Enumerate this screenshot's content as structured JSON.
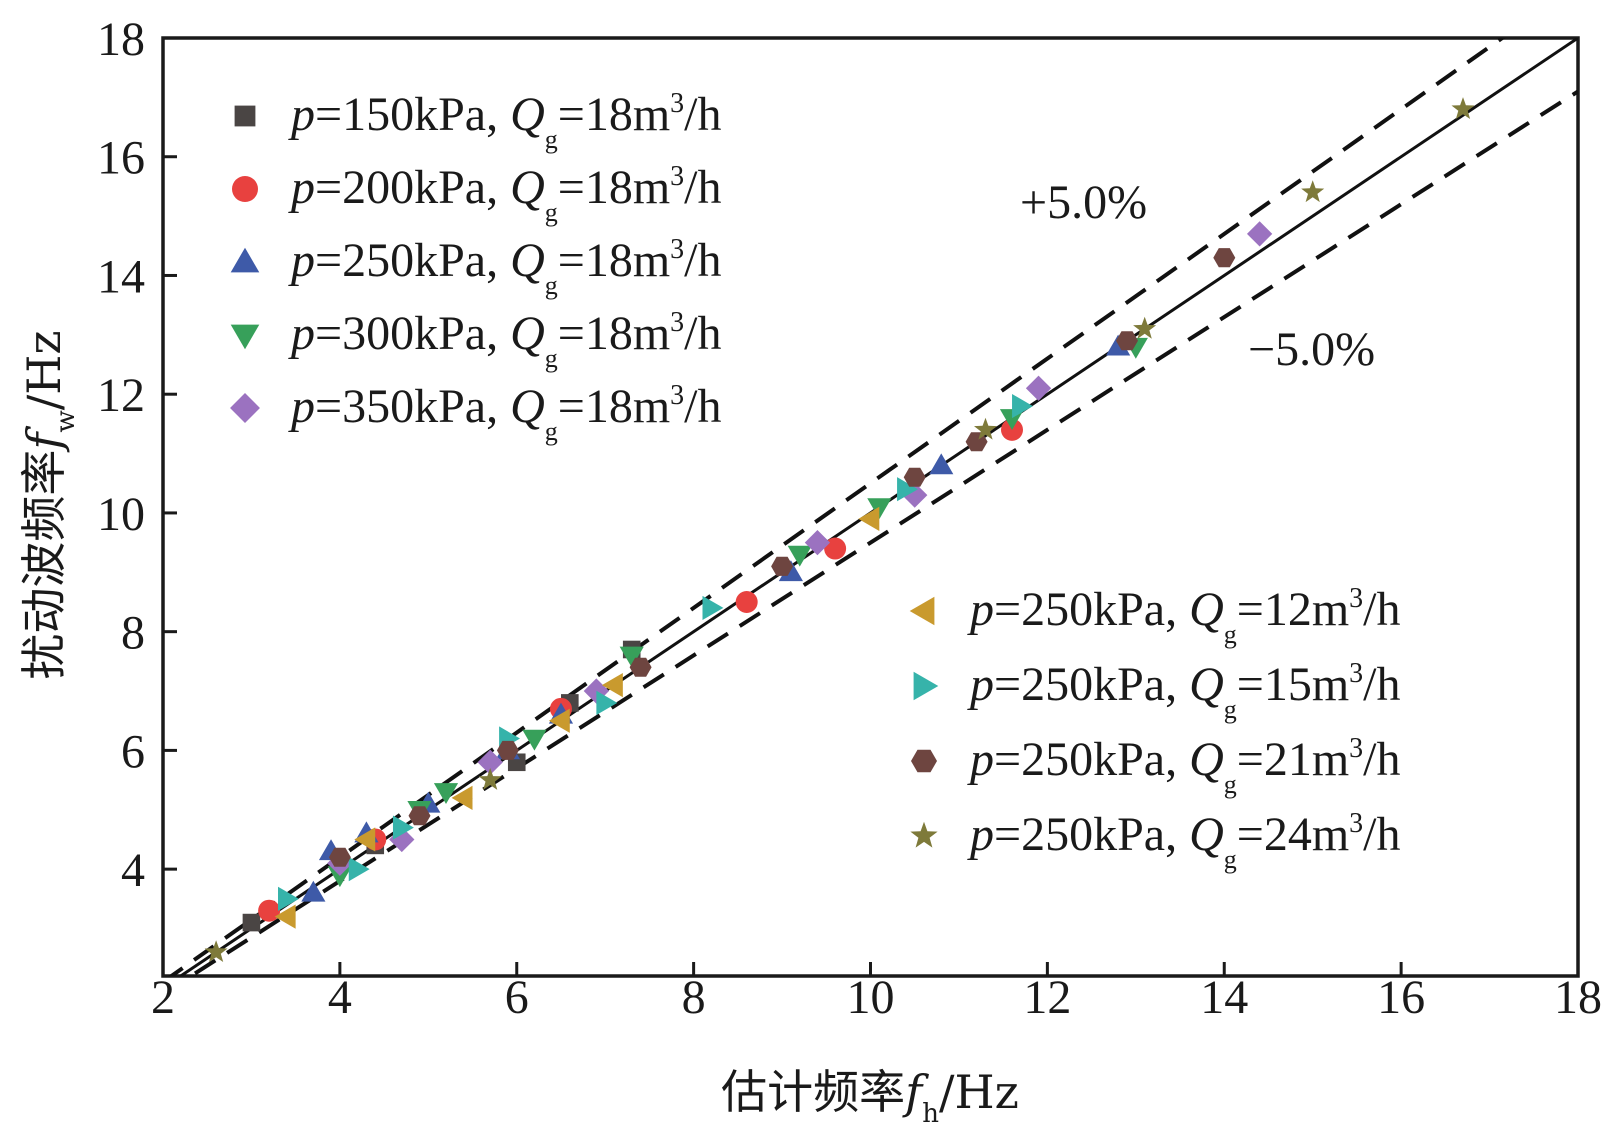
{
  "chart_data": {
    "type": "scatter",
    "xlabel": {
      "prefix": "估计频率",
      "var": "f",
      "sub": "h",
      "unit": "/Hz"
    },
    "ylabel": {
      "prefix": "扰动波频率",
      "var": "f",
      "sub": "w",
      "unit": "/Hz"
    },
    "xlim": [
      2,
      18
    ],
    "ylim": [
      2.2,
      18
    ],
    "xticks": [
      2,
      4,
      6,
      8,
      10,
      12,
      14,
      16,
      18
    ],
    "yticks": [
      4,
      6,
      8,
      10,
      12,
      14,
      16,
      18
    ],
    "tick_labels_x": [
      "2",
      "4",
      "6",
      "8",
      "10",
      "12",
      "14",
      "16",
      "18"
    ],
    "tick_labels_y": [
      "4",
      "6",
      "8",
      "10",
      "12",
      "14",
      "16",
      "18"
    ],
    "reference_lines": [
      {
        "name": "y = x",
        "slope": 1.0,
        "style": "solid"
      },
      {
        "name": "+5.0%",
        "slope": 1.05,
        "style": "dashed"
      },
      {
        "name": "-5.0%",
        "slope": 0.95,
        "style": "dashed"
      }
    ],
    "annotations": {
      "plus": "+5.0%",
      "minus": "−5.0%"
    },
    "legend_position": "top-left and lower-right",
    "series": [
      {
        "key": "s150",
        "p_var": "p",
        "p_text": "=150kPa, ",
        "q_var": "Q",
        "q_sub": "g",
        "q_text": "=18m",
        "q_sup": "3",
        "q_unit": "/h",
        "marker": "square",
        "color": "#4a4544",
        "points": [
          [
            3.0,
            3.1
          ],
          [
            4.4,
            4.4
          ],
          [
            6.0,
            5.8
          ],
          [
            6.6,
            6.8
          ],
          [
            7.3,
            7.7
          ]
        ]
      },
      {
        "key": "s200",
        "p_var": "p",
        "p_text": "=200kPa, ",
        "q_var": "Q",
        "q_sub": "g",
        "q_text": "=18m",
        "q_sup": "3",
        "q_unit": "/h",
        "marker": "circle",
        "color": "#e8413f",
        "points": [
          [
            3.2,
            3.3
          ],
          [
            4.4,
            4.5
          ],
          [
            6.5,
            6.7
          ],
          [
            8.6,
            8.5
          ],
          [
            9.6,
            9.4
          ],
          [
            11.6,
            11.4
          ]
        ]
      },
      {
        "key": "s250",
        "p_var": "p",
        "p_text": "=250kPa, ",
        "q_var": "Q",
        "q_sub": "g",
        "q_text": "=18m",
        "q_sup": "3",
        "q_unit": "/h",
        "marker": "triangle-up",
        "color": "#3e5aa8",
        "points": [
          [
            3.7,
            3.6
          ],
          [
            3.9,
            4.3
          ],
          [
            4.3,
            4.6
          ],
          [
            5.0,
            5.1
          ],
          [
            5.9,
            6.0
          ],
          [
            6.5,
            6.6
          ],
          [
            9.1,
            9.0
          ],
          [
            10.8,
            10.8
          ],
          [
            12.8,
            12.8
          ]
        ]
      },
      {
        "key": "s300",
        "p_var": "p",
        "p_text": "=300kPa, ",
        "q_var": "Q",
        "q_sub": "g",
        "q_text": "=18m",
        "q_sup": "3",
        "q_unit": "/h",
        "marker": "triangle-down",
        "color": "#37a05a",
        "points": [
          [
            4.0,
            3.9
          ],
          [
            4.9,
            5.0
          ],
          [
            5.2,
            5.3
          ],
          [
            6.2,
            6.2
          ],
          [
            7.3,
            7.6
          ],
          [
            9.2,
            9.3
          ],
          [
            10.1,
            10.1
          ],
          [
            11.6,
            11.6
          ],
          [
            13.0,
            12.8
          ]
        ]
      },
      {
        "key": "s350",
        "p_var": "p",
        "p_text": "=350kPa, ",
        "q_var": "Q",
        "q_sub": "g",
        "q_text": "=18m",
        "q_sup": "3",
        "q_unit": "/h",
        "marker": "diamond",
        "color": "#9b72c0",
        "points": [
          [
            4.0,
            4.1
          ],
          [
            4.7,
            4.5
          ],
          [
            5.7,
            5.8
          ],
          [
            6.9,
            7.0
          ],
          [
            9.4,
            9.5
          ],
          [
            10.5,
            10.3
          ],
          [
            11.9,
            12.1
          ],
          [
            14.4,
            14.7
          ]
        ]
      },
      {
        "key": "q12",
        "p_var": "p",
        "p_text": "=250kPa, ",
        "q_var": "Q",
        "q_sub": "g",
        "q_text": "=12m",
        "q_sup": "3",
        "q_unit": "/h",
        "marker": "triangle-left",
        "color": "#c99a2e",
        "points": [
          [
            3.4,
            3.2
          ],
          [
            4.3,
            4.5
          ],
          [
            5.4,
            5.2
          ],
          [
            6.5,
            6.5
          ],
          [
            7.1,
            7.1
          ],
          [
            10.0,
            9.9
          ]
        ]
      },
      {
        "key": "q15",
        "p_var": "p",
        "p_text": "=250kPa, ",
        "q_var": "Q",
        "q_sub": "g",
        "q_text": "=15m",
        "q_sup": "3",
        "q_unit": "/h",
        "marker": "triangle-right",
        "color": "#36b3aa",
        "points": [
          [
            3.4,
            3.5
          ],
          [
            4.2,
            4.0
          ],
          [
            4.7,
            4.7
          ],
          [
            5.9,
            6.2
          ],
          [
            7.0,
            6.8
          ],
          [
            8.2,
            8.4
          ],
          [
            10.4,
            10.4
          ],
          [
            11.7,
            11.8
          ]
        ]
      },
      {
        "key": "q21",
        "p_var": "p",
        "p_text": "=250kPa, ",
        "q_var": "Q",
        "q_sub": "g",
        "q_text": "=21m",
        "q_sup": "3",
        "q_unit": "/h",
        "marker": "hexagon",
        "color": "#6e4540",
        "points": [
          [
            4.0,
            4.2
          ],
          [
            4.9,
            4.9
          ],
          [
            5.9,
            6.0
          ],
          [
            7.4,
            7.4
          ],
          [
            9.0,
            9.1
          ],
          [
            10.5,
            10.6
          ],
          [
            11.2,
            11.2
          ],
          [
            12.9,
            12.9
          ],
          [
            14.0,
            14.3
          ]
        ]
      },
      {
        "key": "q24",
        "p_var": "p",
        "p_text": "=250kPa, ",
        "q_var": "Q",
        "q_sub": "g",
        "q_text": "=24m",
        "q_sup": "3",
        "q_unit": "/h",
        "marker": "star",
        "color": "#7e7a3a",
        "points": [
          [
            2.6,
            2.6
          ],
          [
            5.7,
            5.5
          ],
          [
            11.3,
            11.4
          ],
          [
            13.1,
            13.1
          ],
          [
            15.0,
            15.4
          ],
          [
            16.7,
            16.8
          ]
        ]
      }
    ]
  }
}
